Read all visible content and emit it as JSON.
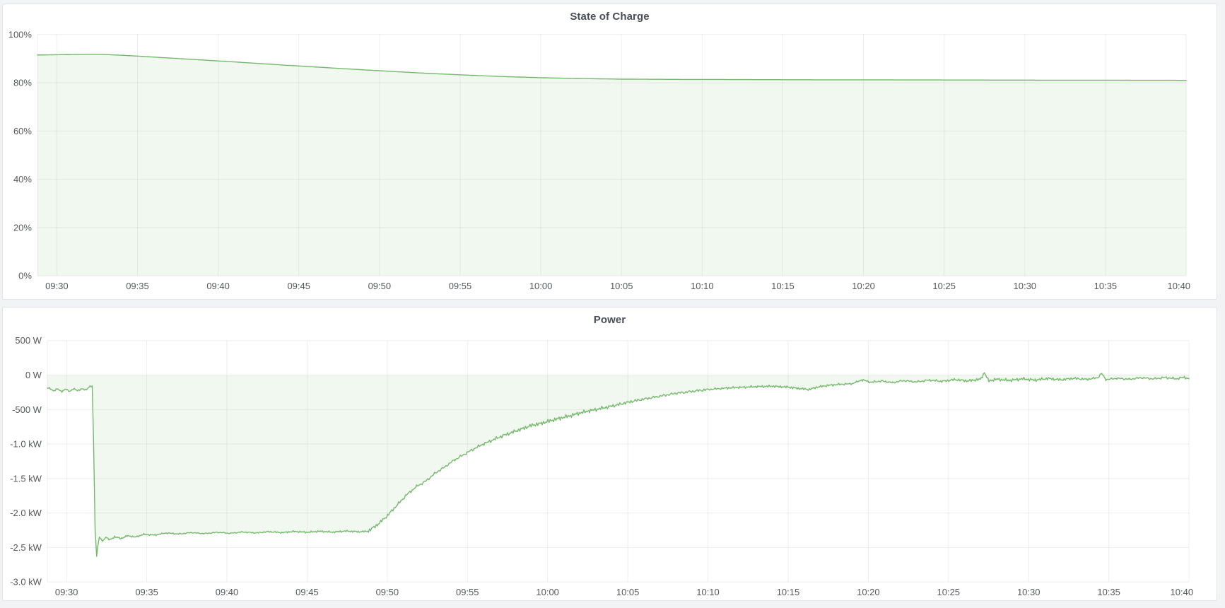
{
  "page": {
    "background": "#f2f3f5",
    "panel_background": "#ffffff",
    "panel_border": "#e0e3e8"
  },
  "panels": [
    {
      "title": "State of Charge"
    },
    {
      "title": "Power"
    }
  ],
  "chart_data": [
    {
      "type": "area",
      "title": "State of Charge",
      "xlabel": "",
      "ylabel": "",
      "legend": "none",
      "grid": true,
      "line_color": "#74b96b",
      "fill_color": "rgba(115,191,105,0.10)",
      "grid_color": "rgba(34,41,48,0.08)",
      "x_domain_minutes": [
        -1.2,
        70
      ],
      "x_tick_minutes": [
        0,
        5,
        10,
        15,
        20,
        25,
        30,
        35,
        40,
        45,
        50,
        55,
        60,
        65,
        70
      ],
      "x_tick_labels": [
        "09:30",
        "09:35",
        "09:40",
        "09:45",
        "09:50",
        "09:55",
        "10:00",
        "10:05",
        "10:10",
        "10:15",
        "10:20",
        "10:25",
        "10:30",
        "10:35",
        "10:40"
      ],
      "y_domain": [
        0,
        100
      ],
      "y_ticks": [
        {
          "value": 100,
          "label": "100%"
        },
        {
          "value": 80,
          "label": "80%"
        },
        {
          "value": 60,
          "label": "60%"
        },
        {
          "value": 40,
          "label": "40%"
        },
        {
          "value": 20,
          "label": "20%"
        },
        {
          "value": 0,
          "label": "0%"
        }
      ],
      "baseline": 0,
      "noise": {
        "seed": 3,
        "bands": [
          {
            "from": -1.2,
            "to": 70,
            "amp": 0
          }
        ]
      },
      "series": [
        {
          "name": "State of Charge (%)",
          "points": [
            [
              -1.2,
              91.5
            ],
            [
              0,
              91.6
            ],
            [
              1,
              91.7
            ],
            [
              2.2,
              91.8
            ],
            [
              3,
              91.7
            ],
            [
              4,
              91.4
            ],
            [
              5,
              91.05
            ],
            [
              6,
              90.65
            ],
            [
              7,
              90.25
            ],
            [
              8,
              89.85
            ],
            [
              9,
              89.45
            ],
            [
              10,
              89.05
            ],
            [
              11,
              88.65
            ],
            [
              12,
              88.2
            ],
            [
              13,
              87.8
            ],
            [
              14,
              87.35
            ],
            [
              15,
              86.95
            ],
            [
              16,
              86.55
            ],
            [
              17,
              86.15
            ],
            [
              18,
              85.75
            ],
            [
              19,
              85.35
            ],
            [
              20,
              85.0
            ],
            [
              21,
              84.6
            ],
            [
              22,
              84.25
            ],
            [
              23,
              83.9
            ],
            [
              24,
              83.6
            ],
            [
              25,
              83.3
            ],
            [
              26,
              83.0
            ],
            [
              27,
              82.75
            ],
            [
              28,
              82.5
            ],
            [
              29,
              82.3
            ],
            [
              30,
              82.1
            ],
            [
              31,
              81.95
            ],
            [
              32,
              81.8
            ],
            [
              33,
              81.7
            ],
            [
              34,
              81.6
            ],
            [
              35,
              81.5
            ],
            [
              36.5,
              81.45
            ],
            [
              38,
              81.4
            ],
            [
              40,
              81.35
            ],
            [
              43,
              81.3
            ],
            [
              46,
              81.25
            ],
            [
              50,
              81.2
            ],
            [
              55,
              81.15
            ],
            [
              60,
              81.1
            ],
            [
              65,
              81.05
            ],
            [
              70,
              81.0
            ]
          ]
        }
      ]
    },
    {
      "type": "area",
      "title": "Power",
      "xlabel": "",
      "ylabel": "",
      "legend": "none",
      "grid": true,
      "line_color": "#74b96b",
      "fill_color": "rgba(115,191,105,0.10)",
      "grid_color": "rgba(34,41,48,0.08)",
      "x_domain_minutes": [
        -1.2,
        70
      ],
      "x_tick_minutes": [
        0,
        5,
        10,
        15,
        20,
        25,
        30,
        35,
        40,
        45,
        50,
        55,
        60,
        65,
        70
      ],
      "x_tick_labels": [
        "09:30",
        "09:35",
        "09:40",
        "09:45",
        "09:50",
        "09:55",
        "10:00",
        "10:05",
        "10:10",
        "10:15",
        "10:20",
        "10:25",
        "10:30",
        "10:35",
        "10:40"
      ],
      "y_domain": [
        -3000,
        500
      ],
      "y_ticks": [
        {
          "value": 500,
          "label": "500 W"
        },
        {
          "value": 0,
          "label": "0 W"
        },
        {
          "value": -500,
          "label": "-500 W"
        },
        {
          "value": -1000,
          "label": "-1.0 kW"
        },
        {
          "value": -1500,
          "label": "-1.5 kW"
        },
        {
          "value": -2000,
          "label": "-2.0 kW"
        },
        {
          "value": -2500,
          "label": "-2.5 kW"
        },
        {
          "value": -3000,
          "label": "-3.0 kW"
        }
      ],
      "baseline": 0,
      "noise": {
        "seed": 11,
        "bands": [
          {
            "from": -1.2,
            "to": 1.55,
            "amp": 14
          },
          {
            "from": 1.55,
            "to": 2.6,
            "amp": 6
          },
          {
            "from": 2.6,
            "to": 18.8,
            "amp": 15
          },
          {
            "from": 18.8,
            "to": 40,
            "amp": 33
          },
          {
            "from": 40,
            "to": 49.6,
            "amp": 20
          },
          {
            "from": 49.6,
            "to": 70,
            "amp": 26
          }
        ]
      },
      "series": [
        {
          "name": "Power (W)",
          "points": [
            [
              -1.05,
              -190
            ],
            [
              -0.8,
              -230
            ],
            [
              -0.55,
              -200
            ],
            [
              -0.3,
              -240
            ],
            [
              -0.05,
              -205
            ],
            [
              0.2,
              -235
            ],
            [
              0.45,
              -200
            ],
            [
              0.7,
              -225
            ],
            [
              0.95,
              -200
            ],
            [
              1.2,
              -215
            ],
            [
              1.45,
              -165
            ],
            [
              1.6,
              -160
            ],
            [
              1.68,
              -900
            ],
            [
              1.78,
              -2250
            ],
            [
              1.88,
              -2630
            ],
            [
              1.95,
              -2480
            ],
            [
              2.05,
              -2350
            ],
            [
              2.25,
              -2410
            ],
            [
              2.45,
              -2350
            ],
            [
              2.7,
              -2390
            ],
            [
              3.0,
              -2345
            ],
            [
              3.4,
              -2370
            ],
            [
              3.8,
              -2330
            ],
            [
              4.3,
              -2350
            ],
            [
              4.8,
              -2310
            ],
            [
              5.5,
              -2320
            ],
            [
              6.2,
              -2290
            ],
            [
              7.0,
              -2305
            ],
            [
              7.8,
              -2285
            ],
            [
              8.6,
              -2300
            ],
            [
              9.4,
              -2280
            ],
            [
              10.2,
              -2295
            ],
            [
              11.0,
              -2275
            ],
            [
              11.8,
              -2290
            ],
            [
              12.6,
              -2270
            ],
            [
              13.4,
              -2285
            ],
            [
              14.2,
              -2268
            ],
            [
              15.0,
              -2280
            ],
            [
              15.8,
              -2265
            ],
            [
              16.6,
              -2278
            ],
            [
              17.4,
              -2262
            ],
            [
              18.2,
              -2272
            ],
            [
              18.8,
              -2265
            ],
            [
              19.4,
              -2170
            ],
            [
              20.0,
              -2040
            ],
            [
              20.6,
              -1890
            ],
            [
              21.2,
              -1740
            ],
            [
              21.8,
              -1620
            ],
            [
              22.4,
              -1540
            ],
            [
              23.0,
              -1420
            ],
            [
              23.6,
              -1330
            ],
            [
              24.2,
              -1230
            ],
            [
              24.8,
              -1150
            ],
            [
              25.4,
              -1070
            ],
            [
              26.0,
              -1000
            ],
            [
              26.6,
              -940
            ],
            [
              27.2,
              -880
            ],
            [
              27.8,
              -830
            ],
            [
              28.4,
              -780
            ],
            [
              29.0,
              -730
            ],
            [
              29.6,
              -700
            ],
            [
              30.2,
              -660
            ],
            [
              30.8,
              -625
            ],
            [
              31.4,
              -590
            ],
            [
              32.0,
              -550
            ],
            [
              32.6,
              -520
            ],
            [
              33.2,
              -490
            ],
            [
              33.8,
              -460
            ],
            [
              34.4,
              -430
            ],
            [
              35.0,
              -395
            ],
            [
              35.6,
              -365
            ],
            [
              36.2,
              -340
            ],
            [
              36.8,
              -315
            ],
            [
              37.4,
              -290
            ],
            [
              38.0,
              -265
            ],
            [
              38.6,
              -248
            ],
            [
              39.2,
              -232
            ],
            [
              39.8,
              -215
            ],
            [
              40.5,
              -200
            ],
            [
              41.2,
              -188
            ],
            [
              42.0,
              -178
            ],
            [
              43.0,
              -168
            ],
            [
              44.0,
              -162
            ],
            [
              45.0,
              -175
            ],
            [
              45.8,
              -198
            ],
            [
              46.3,
              -210
            ],
            [
              46.8,
              -175
            ],
            [
              47.5,
              -150
            ],
            [
              48.2,
              -135
            ],
            [
              49.0,
              -125
            ],
            [
              49.6,
              -70
            ],
            [
              50.2,
              -105
            ],
            [
              50.8,
              -85
            ],
            [
              51.5,
              -110
            ],
            [
              52.2,
              -80
            ],
            [
              53.0,
              -100
            ],
            [
              53.8,
              -72
            ],
            [
              54.6,
              -92
            ],
            [
              55.4,
              -65
            ],
            [
              56.2,
              -85
            ],
            [
              57.0,
              -60
            ],
            [
              57.25,
              35
            ],
            [
              57.5,
              -85
            ],
            [
              58.0,
              -60
            ],
            [
              58.8,
              -78
            ],
            [
              59.6,
              -55
            ],
            [
              60.4,
              -72
            ],
            [
              61.2,
              -50
            ],
            [
              62.0,
              -68
            ],
            [
              62.8,
              -48
            ],
            [
              63.6,
              -62
            ],
            [
              64.3,
              -40
            ],
            [
              64.55,
              25
            ],
            [
              64.8,
              -65
            ],
            [
              65.5,
              -48
            ],
            [
              66.3,
              -60
            ],
            [
              67.0,
              -38
            ],
            [
              67.8,
              -55
            ],
            [
              68.5,
              -35
            ],
            [
              69.2,
              -55
            ],
            [
              69.7,
              -30
            ],
            [
              70,
              -55
            ]
          ]
        }
      ]
    }
  ]
}
